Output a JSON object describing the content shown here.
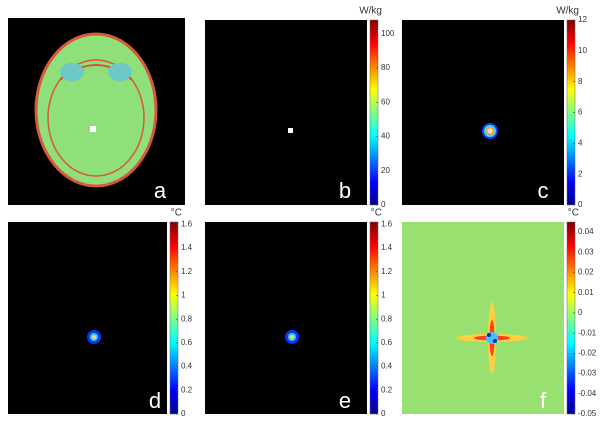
{
  "panels": [
    {
      "letter": "a"
    },
    {
      "letter": "b",
      "colorbar": {
        "unit": "W/kg",
        "lim": [
          0,
          108
        ],
        "ticks": [
          0,
          20,
          40,
          60,
          80,
          100
        ]
      }
    },
    {
      "letter": "c",
      "colorbar": {
        "unit": "W/kg",
        "lim": [
          0,
          12
        ],
        "ticks": [
          0,
          2,
          4,
          6,
          8,
          10,
          12
        ]
      }
    },
    {
      "letter": "d",
      "colorbar": {
        "unit": "°C",
        "lim": [
          0,
          1.62
        ],
        "ticks": [
          0,
          0.2,
          0.4,
          0.6,
          0.8,
          1,
          1.2,
          1.4,
          1.6
        ]
      }
    },
    {
      "letter": "e",
      "colorbar": {
        "unit": "°C",
        "lim": [
          0,
          1.62
        ],
        "ticks": [
          0,
          0.2,
          0.4,
          0.6,
          0.8,
          1,
          1.2,
          1.4,
          1.6
        ]
      }
    },
    {
      "letter": "f",
      "colorbar": {
        "unit": "°C",
        "lim": [
          -0.05,
          0.045
        ],
        "ticks": [
          -0.05,
          -0.04,
          -0.03,
          -0.02,
          -0.01,
          0,
          0.01,
          0.02,
          0.03,
          0.04
        ]
      }
    }
  ]
}
